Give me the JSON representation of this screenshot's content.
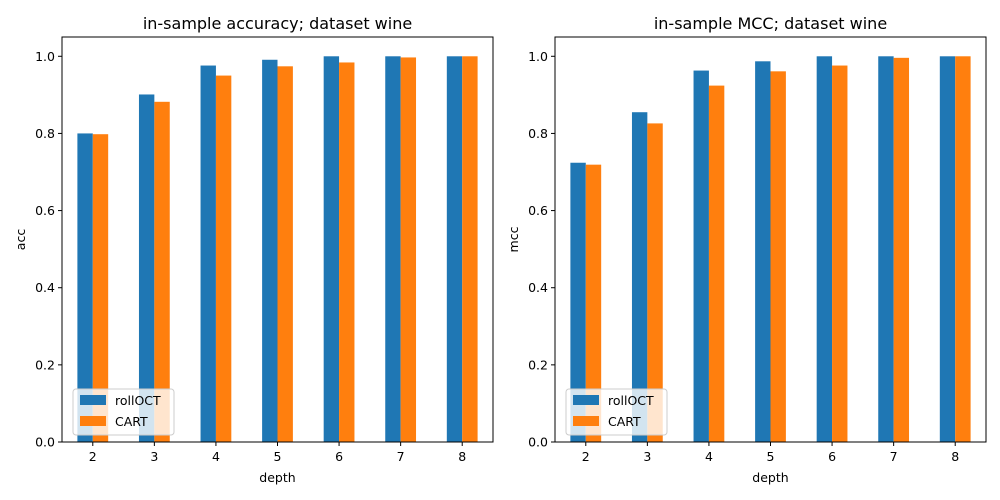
{
  "colors": {
    "rollOCT": "#1f77b4",
    "CART": "#ff7f0e"
  },
  "chart_data": [
    {
      "type": "bar",
      "title": "in-sample accuracy; dataset wine",
      "xlabel": "depth",
      "ylabel": "acc",
      "categories": [
        "2",
        "3",
        "4",
        "5",
        "6",
        "7",
        "8"
      ],
      "series": [
        {
          "name": "rollOCT",
          "values": [
            0.8,
            0.901,
            0.976,
            0.991,
            1.0,
            1.0,
            1.0
          ]
        },
        {
          "name": "CART",
          "values": [
            0.798,
            0.882,
            0.95,
            0.974,
            0.984,
            0.997,
            1.0
          ]
        }
      ],
      "ylim": [
        0,
        1.05
      ],
      "yticks": [
        "0.0",
        "0.2",
        "0.4",
        "0.6",
        "0.8",
        "1.0"
      ],
      "grid": false,
      "legend_position": "lower-left"
    },
    {
      "type": "bar",
      "title": "in-sample MCC; dataset wine",
      "xlabel": "depth",
      "ylabel": "mcc",
      "categories": [
        "2",
        "3",
        "4",
        "5",
        "6",
        "7",
        "8"
      ],
      "series": [
        {
          "name": "rollOCT",
          "values": [
            0.724,
            0.855,
            0.963,
            0.987,
            1.0,
            1.0,
            1.0
          ]
        },
        {
          "name": "CART",
          "values": [
            0.719,
            0.826,
            0.924,
            0.961,
            0.976,
            0.996,
            1.0
          ]
        }
      ],
      "ylim": [
        0,
        1.05
      ],
      "yticks": [
        "0.0",
        "0.2",
        "0.4",
        "0.6",
        "0.8",
        "1.0"
      ],
      "grid": false,
      "legend_position": "lower-left"
    }
  ]
}
